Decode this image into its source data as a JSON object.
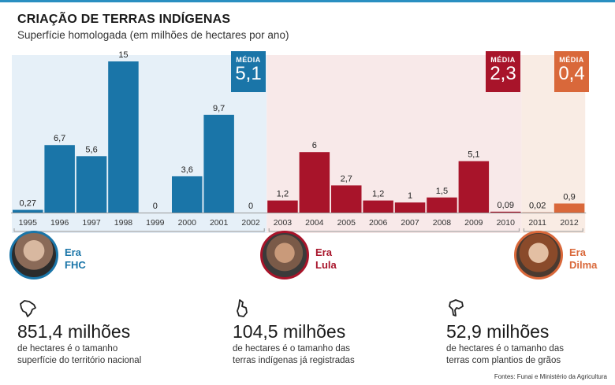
{
  "header": {
    "title": "CRIAÇÃO DE TERRAS INDÍGENAS",
    "subtitle": "Superfície homologada (em milhões de hectares por ano)"
  },
  "chart_data": {
    "type": "bar",
    "title": "CRIAÇÃO DE TERRAS INDÍGENAS",
    "subtitle": "Superfície homologada (em milhões de hectares por ano)",
    "categories": [
      "1995",
      "1996",
      "1997",
      "1998",
      "1999",
      "2000",
      "2001",
      "2002",
      "2003",
      "2004",
      "2005",
      "2006",
      "2007",
      "2008",
      "2009",
      "2010",
      "2011",
      "2012"
    ],
    "values": [
      0.27,
      6.7,
      5.6,
      15,
      0,
      3.6,
      9.7,
      0,
      1.2,
      6,
      2.7,
      1.2,
      1,
      1.5,
      5.1,
      0.09,
      0.02,
      0.9
    ],
    "value_labels": [
      "0,27",
      "6,7",
      "5,6",
      "15",
      "0",
      "3,6",
      "9,7",
      "0",
      "1,2",
      "6",
      "2,7",
      "1,2",
      "1",
      "1,5",
      "5,1",
      "0,09",
      "0,02",
      "0,9"
    ],
    "ylim": [
      0,
      15
    ],
    "grid": false,
    "colors": {
      "fhc": "#1a75a8",
      "lula": "#a8142a",
      "dilma": "#e0703a"
    },
    "eras": [
      {
        "name": "Era FHC",
        "years": [
          "1995",
          "2002"
        ],
        "average_label": "MÉDIA",
        "average": "5,1",
        "color": "#1a75a8",
        "bg": "#e6f0f8"
      },
      {
        "name": "Era Lula",
        "years": [
          "2003",
          "2010"
        ],
        "average_label": "MÉDIA",
        "average": "2,3",
        "color": "#a8142a",
        "bg": "#f8e9e9"
      },
      {
        "name": "Era Dilma",
        "years": [
          "2011",
          "2012"
        ],
        "average_label": "MÉDIA",
        "average": "0,4",
        "color": "#d9683a",
        "bg": "#f9ece4"
      }
    ]
  },
  "eras": [
    {
      "line1": "Era",
      "line2": "FHC",
      "color": "#1a75a8"
    },
    {
      "line1": "Era",
      "line2": "Lula",
      "color": "#a8142a"
    },
    {
      "line1": "Era",
      "line2": "Dilma",
      "color": "#d9683a"
    }
  ],
  "stats": [
    {
      "icon": "brazil-map-icon",
      "value": "851,4 milhões",
      "line1": "de hectares é o tamanho",
      "line2": "superfície do território nacional"
    },
    {
      "icon": "indigenous-land-icon",
      "value": "104,5 milhões",
      "line1": "de hectares é o tamanho das",
      "line2": "terras indígenas já registradas"
    },
    {
      "icon": "farmland-icon",
      "value": "52,9 milhões",
      "line1": "de hectares é o tamanho das",
      "line2": "terras com plantios de grãos"
    }
  ],
  "sources": "Fontes: Funai e Ministério da Agricultura"
}
